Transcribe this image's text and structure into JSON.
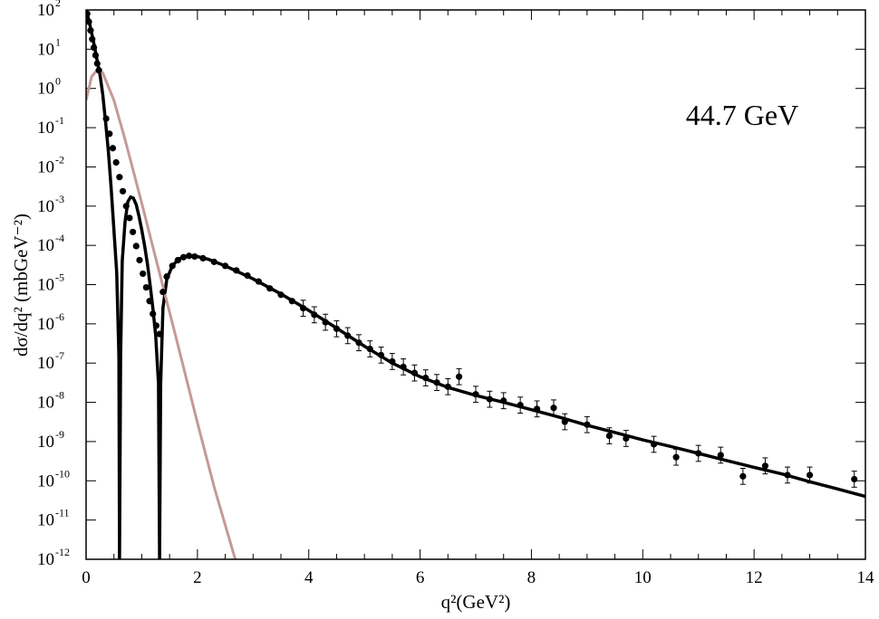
{
  "chart_data": {
    "type": "scatter",
    "title": "",
    "annotation": "44.7 GeV",
    "xlabel": "q²(GeV²)",
    "ylabel": "dσ/dq² (mbGeV⁻²)",
    "xlim": [
      0,
      14
    ],
    "ylim": [
      1e-12,
      100
    ],
    "yscale": "log",
    "grid": false,
    "x_ticks": [
      "0",
      "2",
      "4",
      "6",
      "8",
      "10",
      "12",
      "14"
    ],
    "y_ticks": [
      {
        "base": "10",
        "exp": "2"
      },
      {
        "base": "10",
        "exp": "1"
      },
      {
        "base": "10",
        "exp": "0"
      },
      {
        "base": "10",
        "exp": "-1"
      },
      {
        "base": "10",
        "exp": "-2"
      },
      {
        "base": "10",
        "exp": "-3"
      },
      {
        "base": "10",
        "exp": "-4"
      },
      {
        "base": "10",
        "exp": "-5"
      },
      {
        "base": "10",
        "exp": "-6"
      },
      {
        "base": "10",
        "exp": "-7"
      },
      {
        "base": "10",
        "exp": "-8"
      },
      {
        "base": "10",
        "exp": "-9"
      },
      {
        "base": "10",
        "exp": "-10"
      },
      {
        "base": "10",
        "exp": "-11"
      },
      {
        "base": "10",
        "exp": "-12"
      }
    ],
    "series": [
      {
        "kind": "data-points",
        "color": "#000000",
        "points": [
          {
            "x": 0.02,
            "y": 80.0
          },
          {
            "x": 0.05,
            "y": 50.0
          },
          {
            "x": 0.08,
            "y": 30.0
          },
          {
            "x": 0.11,
            "y": 18.0
          },
          {
            "x": 0.14,
            "y": 11.0
          },
          {
            "x": 0.17,
            "y": 7.0
          },
          {
            "x": 0.2,
            "y": 4.3
          },
          {
            "x": 0.23,
            "y": 2.9
          },
          {
            "x": 0.36,
            "y": 0.17
          },
          {
            "x": 0.42,
            "y": 0.07
          },
          {
            "x": 0.48,
            "y": 0.03
          },
          {
            "x": 0.54,
            "y": 0.013
          },
          {
            "x": 0.6,
            "y": 0.0055
          },
          {
            "x": 0.66,
            "y": 0.0024
          },
          {
            "x": 0.72,
            "y": 0.001
          },
          {
            "x": 0.78,
            "y": 0.0005
          },
          {
            "x": 0.84,
            "y": 0.00022
          },
          {
            "x": 0.9,
            "y": 9.6e-05
          },
          {
            "x": 0.96,
            "y": 4.2e-05
          },
          {
            "x": 1.02,
            "y": 1.9e-05
          },
          {
            "x": 1.08,
            "y": 8.5e-06
          },
          {
            "x": 1.14,
            "y": 3.8e-06
          },
          {
            "x": 1.2,
            "y": 1.8e-06
          },
          {
            "x": 1.26,
            "y": 9e-07
          },
          {
            "x": 1.32,
            "y": 5.5e-07
          },
          {
            "x": 1.38,
            "y": 6.5e-06
          },
          {
            "x": 1.45,
            "y": 1.6e-05
          },
          {
            "x": 1.55,
            "y": 3e-05
          },
          {
            "x": 1.65,
            "y": 4.2e-05
          },
          {
            "x": 1.75,
            "y": 5e-05
          },
          {
            "x": 1.85,
            "y": 5.4e-05
          },
          {
            "x": 1.95,
            "y": 5.2e-05
          },
          {
            "x": 2.1,
            "y": 4.7e-05
          },
          {
            "x": 2.3,
            "y": 3.8e-05
          },
          {
            "x": 2.5,
            "y": 3e-05
          },
          {
            "x": 2.7,
            "y": 2.3e-05
          },
          {
            "x": 2.9,
            "y": 1.7e-05
          },
          {
            "x": 3.1,
            "y": 1.2e-05
          },
          {
            "x": 3.3,
            "y": 8e-06
          },
          {
            "x": 3.5,
            "y": 5.5e-06
          },
          {
            "x": 3.7,
            "y": 3.8e-06
          },
          {
            "x": 3.9,
            "y": 2.5e-06
          },
          {
            "x": 4.1,
            "y": 1.7e-06
          },
          {
            "x": 4.3,
            "y": 1.1e-06
          },
          {
            "x": 4.5,
            "y": 7.5e-07
          },
          {
            "x": 4.7,
            "y": 5e-07
          },
          {
            "x": 4.9,
            "y": 3.3e-07
          },
          {
            "x": 5.1,
            "y": 2.3e-07
          },
          {
            "x": 5.3,
            "y": 1.6e-07
          },
          {
            "x": 5.5,
            "y": 1.1e-07
          },
          {
            "x": 5.7,
            "y": 8e-08
          },
          {
            "x": 5.9,
            "y": 5.6e-08
          },
          {
            "x": 6.1,
            "y": 4.2e-08
          },
          {
            "x": 6.3,
            "y": 3.2e-08
          },
          {
            "x": 6.5,
            "y": 2.5e-08
          },
          {
            "x": 6.7,
            "y": 4.5e-08
          },
          {
            "x": 7.0,
            "y": 1.6e-08
          },
          {
            "x": 7.25,
            "y": 1.2e-08
          },
          {
            "x": 7.5,
            "y": 1.1e-08
          },
          {
            "x": 7.8,
            "y": 8.5e-09
          },
          {
            "x": 8.1,
            "y": 6.8e-09
          },
          {
            "x": 8.4,
            "y": 7.2e-09
          },
          {
            "x": 8.6,
            "y": 3.2e-09
          },
          {
            "x": 9.0,
            "y": 2.7e-09
          },
          {
            "x": 9.4,
            "y": 1.4e-09
          },
          {
            "x": 9.7,
            "y": 1.2e-09
          },
          {
            "x": 10.2,
            "y": 8.5e-10
          },
          {
            "x": 10.6,
            "y": 4e-10
          },
          {
            "x": 11.0,
            "y": 5e-10
          },
          {
            "x": 11.4,
            "y": 4.5e-10
          },
          {
            "x": 11.8,
            "y": 1.3e-10
          },
          {
            "x": 12.2,
            "y": 2.4e-10
          },
          {
            "x": 12.6,
            "y": 1.4e-10
          },
          {
            "x": 13.0,
            "y": 1.4e-10
          },
          {
            "x": 13.8,
            "y": 1.1e-10
          }
        ]
      },
      {
        "kind": "fit-curve",
        "color": "#000000",
        "points": [
          {
            "x": 0.0,
            "y": 100.0
          },
          {
            "x": 0.05,
            "y": 55.0
          },
          {
            "x": 0.1,
            "y": 26.0
          },
          {
            "x": 0.15,
            "y": 12.0
          },
          {
            "x": 0.2,
            "y": 5.0
          },
          {
            "x": 0.25,
            "y": 2.2
          },
          {
            "x": 0.3,
            "y": 0.7
          },
          {
            "x": 0.35,
            "y": 0.14
          },
          {
            "x": 0.4,
            "y": 0.025
          },
          {
            "x": 0.45,
            "y": 0.003
          },
          {
            "x": 0.5,
            "y": 0.00025
          },
          {
            "x": 0.55,
            "y": 2e-05
          },
          {
            "x": 0.59,
            "y": 1.5e-07
          },
          {
            "x": 0.6,
            "y": 1e-12
          },
          {
            "x": 0.62,
            "y": 1.5e-07
          },
          {
            "x": 0.65,
            "y": 4e-05
          },
          {
            "x": 0.7,
            "y": 0.0004
          },
          {
            "x": 0.75,
            "y": 0.0013
          },
          {
            "x": 0.8,
            "y": 0.0017
          },
          {
            "x": 0.85,
            "y": 0.0016
          },
          {
            "x": 0.9,
            "y": 0.0011
          },
          {
            "x": 0.95,
            "y": 0.00055
          },
          {
            "x": 1.0,
            "y": 0.00025
          },
          {
            "x": 1.05,
            "y": 0.0001
          },
          {
            "x": 1.1,
            "y": 3.5e-05
          },
          {
            "x": 1.15,
            "y": 1e-05
          },
          {
            "x": 1.2,
            "y": 2.5e-06
          },
          {
            "x": 1.25,
            "y": 5e-07
          },
          {
            "x": 1.3,
            "y": 3e-08
          },
          {
            "x": 1.32,
            "y": 1e-12
          },
          {
            "x": 1.34,
            "y": 3e-08
          },
          {
            "x": 1.38,
            "y": 2.5e-06
          },
          {
            "x": 1.45,
            "y": 1.4e-05
          },
          {
            "x": 1.55,
            "y": 3e-05
          },
          {
            "x": 1.65,
            "y": 4.3e-05
          },
          {
            "x": 1.75,
            "y": 5.1e-05
          },
          {
            "x": 1.85,
            "y": 5.4e-05
          },
          {
            "x": 2.0,
            "y": 5.2e-05
          },
          {
            "x": 2.2,
            "y": 4.4e-05
          },
          {
            "x": 2.5,
            "y": 3e-05
          },
          {
            "x": 3.0,
            "y": 1.4e-05
          },
          {
            "x": 3.5,
            "y": 5.8e-06
          },
          {
            "x": 4.0,
            "y": 2.2e-06
          },
          {
            "x": 4.5,
            "y": 7.8e-07
          },
          {
            "x": 5.0,
            "y": 2.7e-07
          },
          {
            "x": 5.5,
            "y": 1e-07
          },
          {
            "x": 6.0,
            "y": 4.5e-08
          },
          {
            "x": 6.5,
            "y": 2.4e-08
          },
          {
            "x": 7.0,
            "y": 1.5e-08
          },
          {
            "x": 7.5,
            "y": 1e-08
          },
          {
            "x": 8.0,
            "y": 6.5e-09
          },
          {
            "x": 8.5,
            "y": 4.2e-09
          },
          {
            "x": 9.0,
            "y": 2.6e-09
          },
          {
            "x": 9.5,
            "y": 1.7e-09
          },
          {
            "x": 10.0,
            "y": 1.1e-09
          },
          {
            "x": 10.5,
            "y": 7.5e-10
          },
          {
            "x": 11.0,
            "y": 5e-10
          },
          {
            "x": 11.5,
            "y": 3.3e-10
          },
          {
            "x": 12.0,
            "y": 2.2e-10
          },
          {
            "x": 12.5,
            "y": 1.5e-10
          },
          {
            "x": 13.0,
            "y": 9.5e-11
          },
          {
            "x": 13.5,
            "y": 6.2e-11
          },
          {
            "x": 14.0,
            "y": 4e-11
          }
        ]
      },
      {
        "kind": "fit-curve",
        "color": "#c49a98",
        "points": [
          {
            "x": 0.0,
            "y": 0.5
          },
          {
            "x": 0.1,
            "y": 2.0
          },
          {
            "x": 0.2,
            "y": 3.0
          },
          {
            "x": 0.3,
            "y": 2.5
          },
          {
            "x": 0.5,
            "y": 0.5
          },
          {
            "x": 0.7,
            "y": 0.05
          },
          {
            "x": 1.0,
            "y": 0.0012
          },
          {
            "x": 1.3,
            "y": 2.5e-05
          },
          {
            "x": 1.6,
            "y": 5.5e-07
          },
          {
            "x": 2.0,
            "y": 3e-09
          },
          {
            "x": 2.3,
            "y": 7e-11
          },
          {
            "x": 2.68,
            "y": 1e-12
          }
        ]
      }
    ]
  }
}
